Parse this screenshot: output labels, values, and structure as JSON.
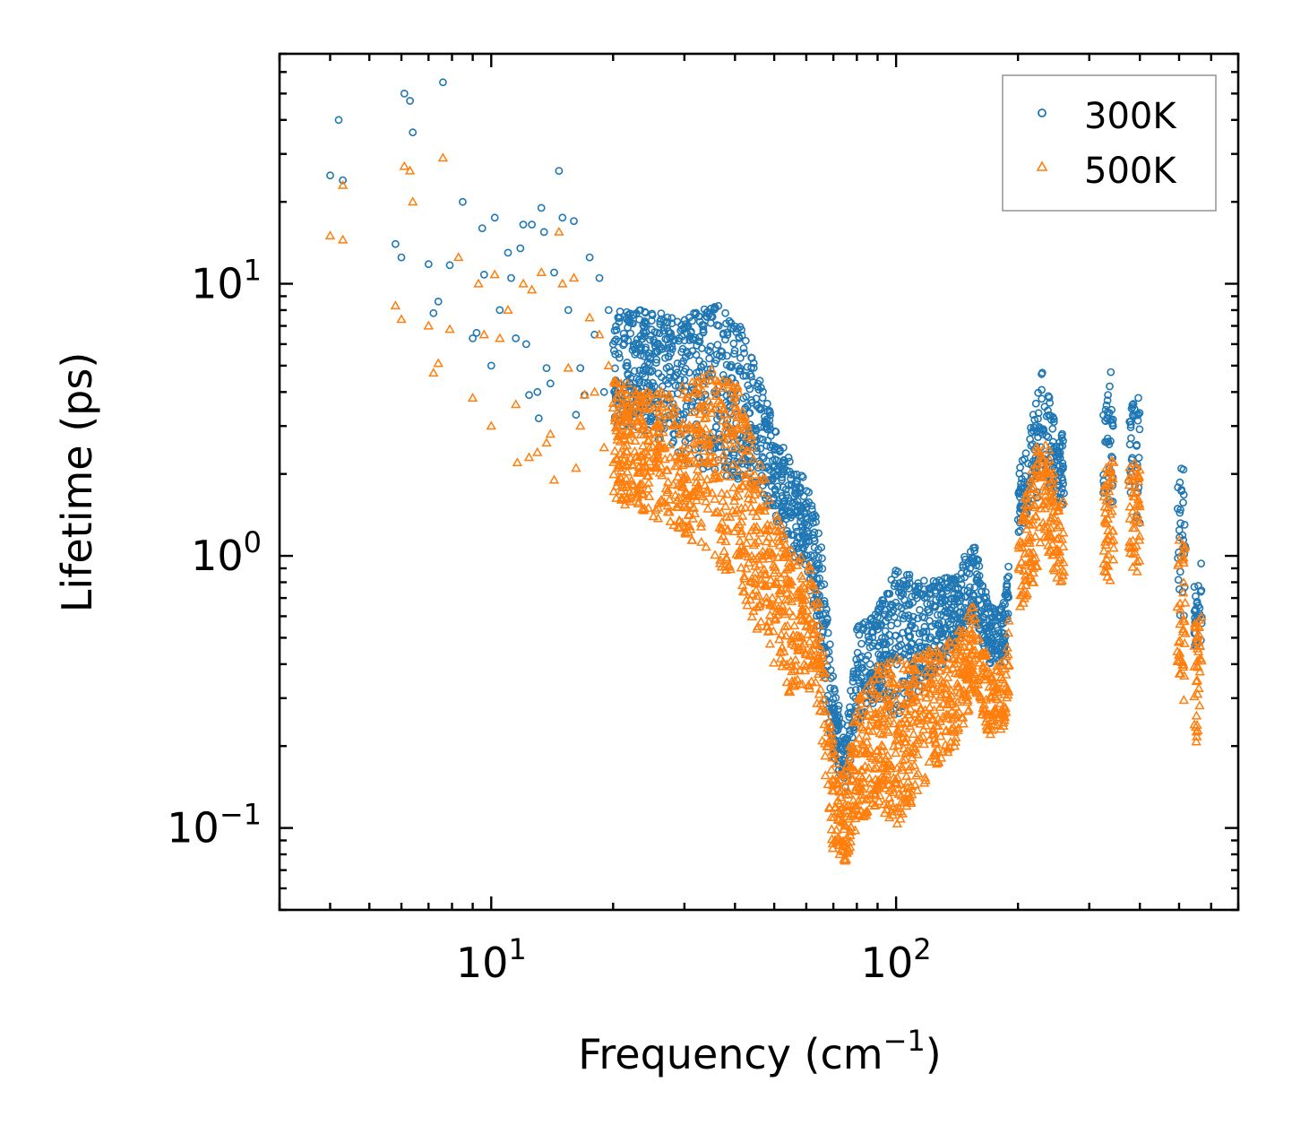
{
  "colors": {
    "s300": "#1f77b4",
    "s500": "#ff7f0e",
    "axis": "#000000",
    "legend_border": "#9a9a9a"
  },
  "chart_data": {
    "type": "scatter",
    "xscale": "log",
    "yscale": "log",
    "xlabel_main": "Frequency (cm",
    "xlabel_sup": "−1",
    "xlabel_close": ")",
    "ylabel": "Lifetime (ps)",
    "xlim": [
      3.0,
      700
    ],
    "ylim": [
      0.05,
      70
    ],
    "xticks": [
      {
        "value": 10,
        "base": "10",
        "exp": "1"
      },
      {
        "value": 100,
        "base": "10",
        "exp": "2"
      }
    ],
    "yticks": [
      {
        "value": 0.1,
        "base": "10",
        "exp": "−1"
      },
      {
        "value": 1,
        "base": "10",
        "exp": "0"
      },
      {
        "value": 10,
        "base": "10",
        "exp": "1"
      }
    ],
    "legend_position": "top-right",
    "series": [
      {
        "name": "300K",
        "marker": "circle",
        "discrete_points": [
          [
            4.0,
            25
          ],
          [
            4.2,
            40
          ],
          [
            4.3,
            24
          ],
          [
            5.8,
            14
          ],
          [
            6.0,
            12.5
          ],
          [
            6.1,
            50
          ],
          [
            6.3,
            47
          ],
          [
            6.4,
            36
          ],
          [
            7.0,
            11.8
          ],
          [
            7.2,
            7.8
          ],
          [
            7.4,
            8.6
          ],
          [
            7.6,
            55
          ],
          [
            7.9,
            11.7
          ],
          [
            8.5,
            20
          ],
          [
            9.0,
            6.3
          ],
          [
            9.2,
            6.6
          ],
          [
            9.5,
            16
          ],
          [
            9.6,
            10.8
          ],
          [
            10.0,
            5.0
          ],
          [
            10.2,
            17.5
          ],
          [
            10.5,
            8.0
          ],
          [
            11.0,
            13
          ],
          [
            11.2,
            10.5
          ],
          [
            11.5,
            6.3
          ],
          [
            11.8,
            13.5
          ],
          [
            12.0,
            16.5
          ],
          [
            12.2,
            6.0
          ],
          [
            12.4,
            3.9
          ],
          [
            12.6,
            16.5
          ],
          [
            13.0,
            4.0
          ],
          [
            13.1,
            3.2
          ],
          [
            13.3,
            19
          ],
          [
            13.5,
            15.5
          ],
          [
            13.7,
            4.9
          ],
          [
            14.0,
            4.3
          ],
          [
            14.3,
            11
          ],
          [
            14.7,
            26
          ],
          [
            15.0,
            17.5
          ],
          [
            15.5,
            8.0
          ],
          [
            16.0,
            17
          ],
          [
            16.2,
            3.3
          ],
          [
            16.6,
            4.9
          ],
          [
            17.0,
            3.9
          ],
          [
            17.5,
            12.5
          ],
          [
            18.0,
            6.5
          ],
          [
            18.5,
            10.5
          ],
          [
            19.0,
            4.0
          ],
          [
            19.5,
            8.0
          ],
          [
            20.0,
            6.0
          ]
        ],
        "band_envelope": [
          [
            20,
            3.0,
            8.0
          ],
          [
            25,
            2.8,
            8.0
          ],
          [
            30,
            2.2,
            7.5
          ],
          [
            35,
            2.0,
            8.5
          ],
          [
            40,
            1.9,
            7.8
          ],
          [
            45,
            1.8,
            5.2
          ],
          [
            50,
            1.4,
            3.0
          ],
          [
            55,
            1.0,
            2.2
          ],
          [
            60,
            0.9,
            1.9
          ],
          [
            65,
            0.4,
            1.2
          ],
          [
            70,
            0.18,
            0.35
          ],
          [
            75,
            0.14,
            0.22
          ],
          [
            80,
            0.24,
            0.55
          ],
          [
            90,
            0.3,
            0.65
          ],
          [
            100,
            0.25,
            0.9
          ],
          [
            120,
            0.35,
            0.8
          ],
          [
            140,
            0.45,
            0.85
          ],
          [
            155,
            0.6,
            1.15
          ],
          [
            170,
            0.4,
            0.65
          ],
          [
            185,
            0.4,
            0.68
          ],
          [
            200,
            1.2,
            2.0
          ],
          [
            220,
            1.5,
            3.5
          ],
          [
            230,
            2.0,
            5.0
          ],
          [
            250,
            1.5,
            2.8
          ],
          [
            330,
            1.6,
            3.5
          ],
          [
            340,
            1.5,
            5.0
          ],
          [
            380,
            1.4,
            3.5
          ],
          [
            390,
            1.4,
            4.0
          ],
          [
            500,
            0.6,
            2.0
          ],
          [
            510,
            0.55,
            2.3
          ],
          [
            550,
            0.45,
            0.7
          ],
          [
            570,
            0.5,
            1.0
          ]
        ]
      },
      {
        "name": "500K",
        "marker": "triangle",
        "discrete_points": [
          [
            4.0,
            15
          ],
          [
            4.3,
            14.5
          ],
          [
            4.3,
            23
          ],
          [
            5.8,
            8.3
          ],
          [
            6.0,
            7.4
          ],
          [
            6.1,
            27
          ],
          [
            6.3,
            26
          ],
          [
            6.4,
            20
          ],
          [
            7.0,
            7.0
          ],
          [
            7.2,
            4.7
          ],
          [
            7.4,
            5.1
          ],
          [
            7.6,
            29
          ],
          [
            7.9,
            6.8
          ],
          [
            8.3,
            12.5
          ],
          [
            9.0,
            3.8
          ],
          [
            9.3,
            10
          ],
          [
            9.6,
            6.5
          ],
          [
            10.0,
            3.0
          ],
          [
            10.2,
            10.8
          ],
          [
            10.5,
            6.3
          ],
          [
            11.0,
            8.0
          ],
          [
            11.5,
            3.6
          ],
          [
            11.6,
            2.2
          ],
          [
            12.0,
            10
          ],
          [
            12.4,
            2.3
          ],
          [
            12.6,
            9.5
          ],
          [
            13.0,
            2.4
          ],
          [
            13.3,
            11
          ],
          [
            13.7,
            2.6
          ],
          [
            14.0,
            2.8
          ],
          [
            14.3,
            1.9
          ],
          [
            14.7,
            15.5
          ],
          [
            15.0,
            10
          ],
          [
            15.5,
            4.9
          ],
          [
            16.0,
            10.5
          ],
          [
            16.2,
            2.1
          ],
          [
            16.6,
            3.0
          ],
          [
            17.0,
            3.9
          ],
          [
            17.5,
            7.5
          ],
          [
            18.0,
            4.0
          ],
          [
            18.5,
            6.5
          ],
          [
            19.0,
            2.5
          ],
          [
            19.5,
            5.0
          ],
          [
            20.0,
            3.5
          ]
        ],
        "band_envelope": [
          [
            20,
            1.6,
            4.5
          ],
          [
            25,
            1.4,
            4.0
          ],
          [
            30,
            1.2,
            4.2
          ],
          [
            35,
            1.0,
            5.0
          ],
          [
            40,
            0.8,
            4.5
          ],
          [
            45,
            0.55,
            2.5
          ],
          [
            50,
            0.4,
            1.5
          ],
          [
            55,
            0.3,
            1.1
          ],
          [
            60,
            0.35,
            1.0
          ],
          [
            65,
            0.25,
            0.7
          ],
          [
            70,
            0.075,
            0.2
          ],
          [
            75,
            0.075,
            0.16
          ],
          [
            80,
            0.1,
            0.3
          ],
          [
            90,
            0.12,
            0.4
          ],
          [
            100,
            0.1,
            0.42
          ],
          [
            120,
            0.15,
            0.45
          ],
          [
            140,
            0.2,
            0.5
          ],
          [
            155,
            0.3,
            0.7
          ],
          [
            170,
            0.22,
            0.4
          ],
          [
            185,
            0.23,
            0.42
          ],
          [
            200,
            0.6,
            1.2
          ],
          [
            220,
            0.8,
            2.5
          ],
          [
            230,
            1.2,
            3.2
          ],
          [
            250,
            0.8,
            1.8
          ],
          [
            330,
            0.85,
            2.2
          ],
          [
            340,
            0.8,
            2.4
          ],
          [
            380,
            0.9,
            2.2
          ],
          [
            390,
            0.9,
            2.4
          ],
          [
            500,
            0.35,
            1.2
          ],
          [
            510,
            0.3,
            1.4
          ],
          [
            550,
            0.2,
            0.6
          ],
          [
            570,
            0.3,
            0.6
          ]
        ]
      }
    ]
  }
}
